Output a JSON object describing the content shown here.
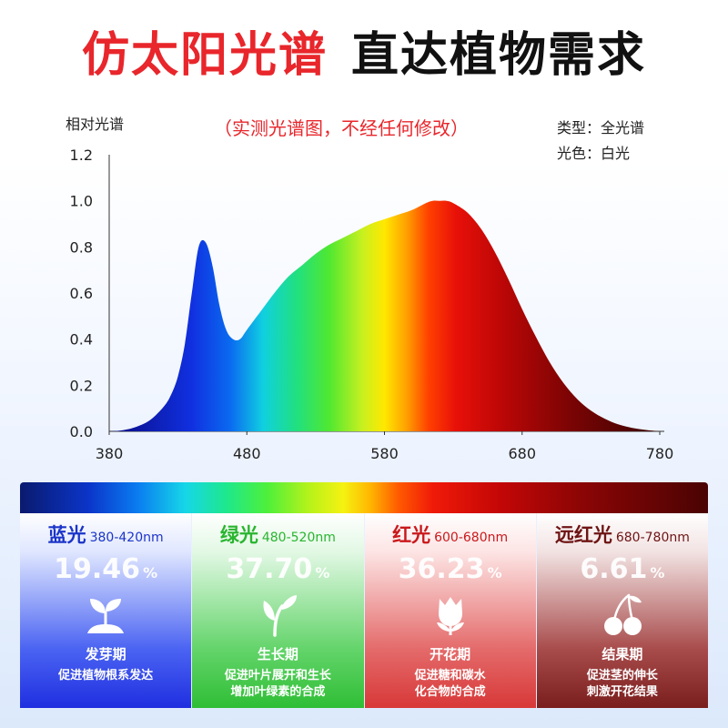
{
  "headline": {
    "part1": "仿太阳光谱",
    "part2": "直达植物需求"
  },
  "chart_data": {
    "type": "area",
    "ylabel": "相对光谱",
    "subtitle": "（实测光谱图，不经任何修改）",
    "info": {
      "type_line": "类型：全光谱",
      "color_line": "光色：白光"
    },
    "xlim": [
      380,
      780
    ],
    "ylim": [
      0,
      1.2
    ],
    "x_ticks": [
      "380",
      "480",
      "580",
      "680",
      "780"
    ],
    "y_ticks": [
      "0.0",
      "0.2",
      "0.4",
      "0.6",
      "0.8",
      "1.0",
      "1.2"
    ],
    "x": [
      380,
      390,
      400,
      410,
      420,
      425,
      430,
      435,
      440,
      445,
      450,
      455,
      460,
      465,
      470,
      475,
      480,
      490,
      500,
      510,
      520,
      530,
      540,
      550,
      560,
      570,
      580,
      590,
      600,
      610,
      615,
      620,
      625,
      630,
      640,
      650,
      660,
      670,
      680,
      690,
      700,
      710,
      720,
      730,
      740,
      750,
      760,
      770,
      780
    ],
    "y": [
      0.0,
      0.005,
      0.02,
      0.05,
      0.11,
      0.16,
      0.24,
      0.38,
      0.6,
      0.8,
      0.82,
      0.72,
      0.55,
      0.44,
      0.4,
      0.4,
      0.44,
      0.52,
      0.6,
      0.67,
      0.72,
      0.77,
      0.81,
      0.84,
      0.87,
      0.9,
      0.92,
      0.94,
      0.96,
      0.99,
      1.0,
      1.0,
      1.0,
      0.99,
      0.95,
      0.88,
      0.78,
      0.66,
      0.53,
      0.41,
      0.3,
      0.21,
      0.14,
      0.09,
      0.055,
      0.03,
      0.015,
      0.006,
      0.0
    ]
  },
  "bands": [
    {
      "name": "蓝光",
      "range": "380-420nm",
      "percent": "19.46",
      "unit": "%",
      "icon": "seedling-icon",
      "stage": "发芽期",
      "desc": [
        "促进植物根系发达"
      ]
    },
    {
      "name": "绿光",
      "range": "480-520nm",
      "percent": "37.70",
      "unit": "%",
      "icon": "sprout-icon",
      "stage": "生长期",
      "desc": [
        "促进叶片展开和生长",
        "增加叶绿素的合成"
      ]
    },
    {
      "name": "红光",
      "range": "600-680nm",
      "percent": "36.23",
      "unit": "%",
      "icon": "flower-icon",
      "stage": "开花期",
      "desc": [
        "促进糖和碳水",
        "化合物的合成"
      ]
    },
    {
      "name": "远红光",
      "range": "680-780nm",
      "percent": "6.61",
      "unit": "%",
      "icon": "cherry-icon",
      "stage": "结果期",
      "desc": [
        "促进茎的伸长",
        "刺激开花结果"
      ]
    }
  ]
}
